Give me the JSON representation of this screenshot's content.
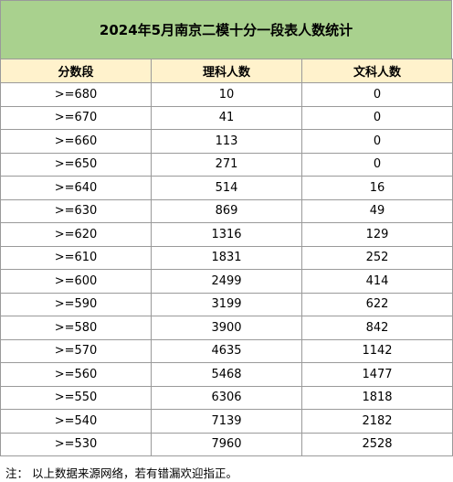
{
  "title": "2024年5月南京二模十分一段表人数统计",
  "headers": [
    "分数段",
    "理科人数",
    "文科人数"
  ],
  "rows": [
    {
      "band": ">=680",
      "science": "10",
      "arts": "0"
    },
    {
      "band": ">=670",
      "science": "41",
      "arts": "0"
    },
    {
      "band": ">=660",
      "science": "113",
      "arts": "0"
    },
    {
      "band": ">=650",
      "science": "271",
      "arts": "0"
    },
    {
      "band": ">=640",
      "science": "514",
      "arts": "16"
    },
    {
      "band": ">=630",
      "science": "869",
      "arts": "49"
    },
    {
      "band": ">=620",
      "science": "1316",
      "arts": "129"
    },
    {
      "band": ">=610",
      "science": "1831",
      "arts": "252"
    },
    {
      "band": ">=600",
      "science": "2499",
      "arts": "414"
    },
    {
      "band": ">=590",
      "science": "3199",
      "arts": "622"
    },
    {
      "band": ">=580",
      "science": "3900",
      "arts": "842"
    },
    {
      "band": ">=570",
      "science": "4635",
      "arts": "1142"
    },
    {
      "band": ">=560",
      "science": "5468",
      "arts": "1477"
    },
    {
      "band": ">=550",
      "science": "6306",
      "arts": "1818"
    },
    {
      "band": ">=540",
      "science": "7139",
      "arts": "2182"
    },
    {
      "band": ">=530",
      "science": "7960",
      "arts": "2528"
    }
  ],
  "note": "注：  以上数据来源网络，若有错漏欢迎指正。",
  "colors": {
    "title_bg": "#a9d18e",
    "header_bg": "#fff2cc",
    "grid": "#9a9a9a"
  }
}
